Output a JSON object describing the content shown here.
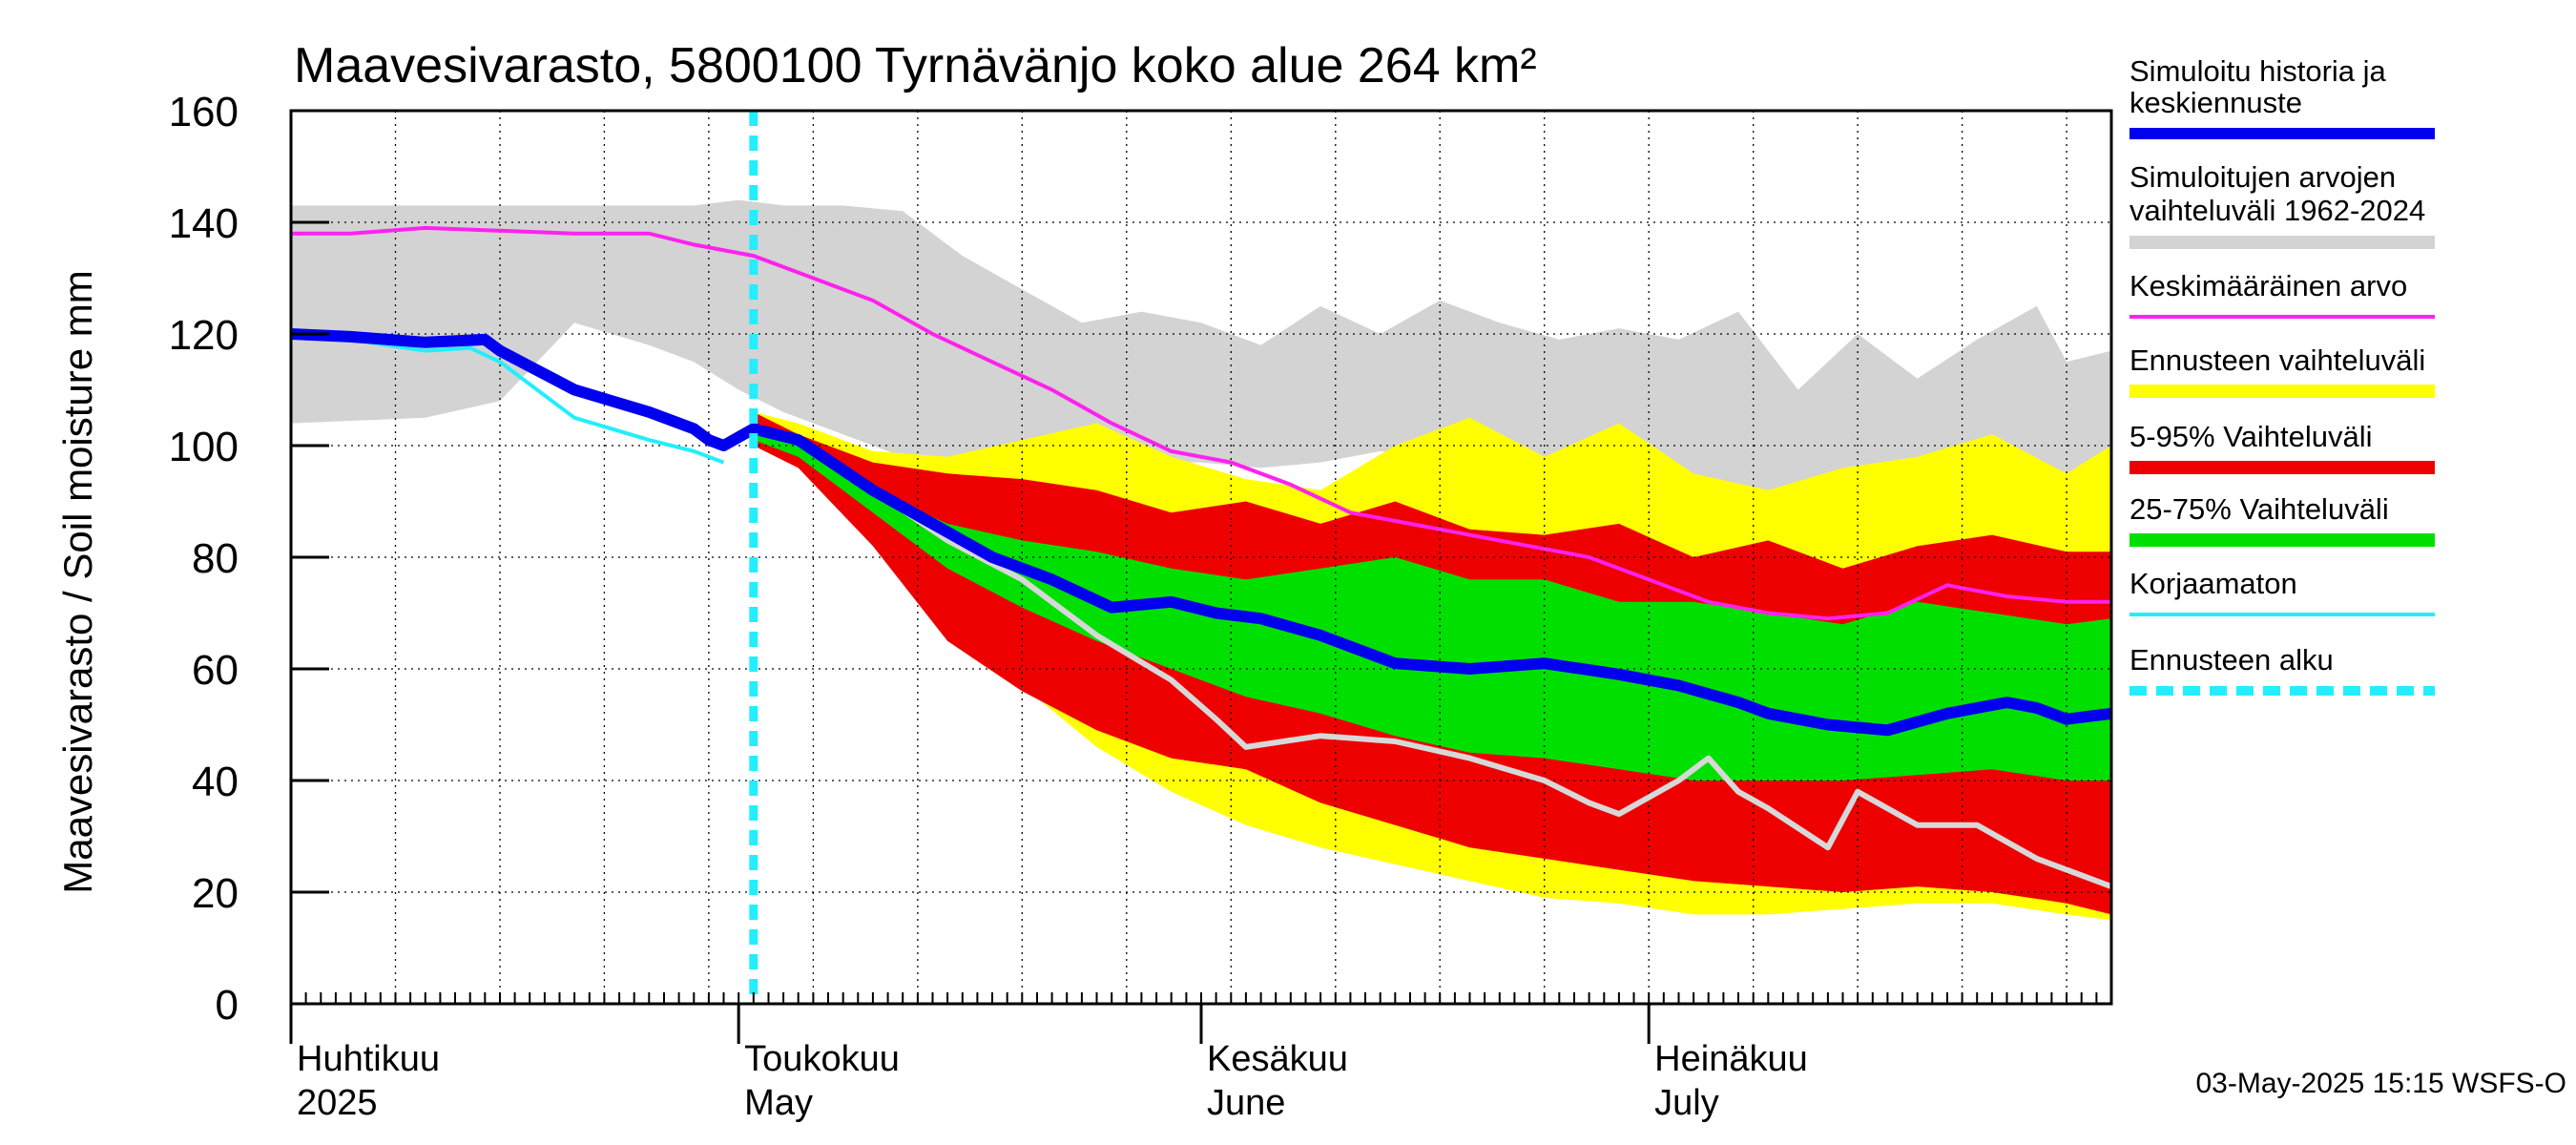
{
  "chart_data": {
    "type": "area",
    "title": "Maavesivarasto, 5800100 Tyrnävänjo koko alue 264 km²",
    "ylabel": "Maavesivarasto / Soil moisture   mm",
    "ylim": [
      0,
      160
    ],
    "yticks": [
      0,
      20,
      40,
      60,
      80,
      100,
      120,
      140,
      160
    ],
    "x_unit": "day of year 2025 (1 = 1 April)",
    "xlim": [
      1,
      123
    ],
    "grid": true,
    "months": [
      {
        "fi": "Huhtikuu",
        "en": "2025",
        "day": 1
      },
      {
        "fi": "Toukokuu",
        "en": "May",
        "day": 31
      },
      {
        "fi": "Kesäkuu",
        "en": "June",
        "day": 62
      },
      {
        "fi": "Heinäkuu",
        "en": "July",
        "day": 92
      }
    ],
    "forecast_start_day": 32,
    "legend": [
      {
        "label": "Simuloitu historia ja keskiennuste",
        "color": "#0000ee"
      },
      {
        "label": "Simuloitujen arvojen vaihteluväli 1962-2024",
        "color": "#d3d3d3"
      },
      {
        "label": "Keskimääräinen arvo",
        "color": "#ff22ee"
      },
      {
        "label": "Ennusteen vaihteluväli",
        "color": "#ffff00"
      },
      {
        "label": "5-95% Vaihteluväli",
        "color": "#ee0000"
      },
      {
        "label": "25-75% Vaihteluväli",
        "color": "#00e000"
      },
      {
        "label": "Korjaamaton",
        "color": "#22eeff"
      },
      {
        "label": "Ennusteen alku",
        "color": "#22eeff"
      }
    ],
    "series": {
      "hist_range": {
        "name": "Simuloitujen arvojen vaihteluväli 1962-2024",
        "x": [
          1,
          10,
          15,
          20,
          25,
          28,
          31,
          34,
          38,
          42,
          46,
          50,
          54,
          58,
          62,
          66,
          70,
          74,
          78,
          82,
          86,
          90,
          94,
          98,
          102,
          106,
          110,
          114,
          118,
          120,
          123
        ],
        "upper": [
          143,
          143,
          143,
          143,
          143,
          143,
          144,
          143,
          143,
          142,
          134,
          128,
          122,
          124,
          122,
          118,
          125,
          120,
          126,
          122,
          119,
          121,
          119,
          124,
          110,
          120,
          112,
          119,
          125,
          115,
          117
        ],
        "lower": [
          104,
          105,
          108,
          122,
          118,
          115,
          110,
          106,
          102,
          98,
          98,
          96,
          98,
          97,
          97,
          96,
          97,
          99,
          98,
          96,
          97,
          99,
          95,
          92,
          90,
          94,
          91,
          95,
          94,
          89,
          98
        ]
      },
      "forecast_range": {
        "name": "Ennusteen vaihteluväli",
        "x": [
          32,
          35,
          40,
          45,
          50,
          55,
          60,
          65,
          70,
          75,
          80,
          85,
          90,
          95,
          100,
          105,
          110,
          115,
          120,
          123
        ],
        "upper": [
          106,
          104,
          99,
          98,
          101,
          104,
          98,
          94,
          92,
          100,
          105,
          98,
          104,
          95,
          92,
          96,
          98,
          102,
          95,
          100
        ],
        "lower": [
          100,
          97,
          85,
          70,
          57,
          46,
          38,
          32,
          28,
          25,
          22,
          19,
          18,
          16,
          16,
          17,
          18,
          18,
          16,
          15
        ]
      },
      "p5_95": {
        "name": "5-95% Vaihteluväli",
        "x": [
          32,
          35,
          40,
          45,
          50,
          55,
          60,
          65,
          70,
          75,
          80,
          85,
          90,
          95,
          100,
          105,
          110,
          115,
          120,
          123
        ],
        "upper": [
          106,
          102,
          97,
          95,
          94,
          92,
          88,
          90,
          86,
          90,
          85,
          84,
          86,
          80,
          83,
          78,
          82,
          84,
          81,
          81
        ],
        "lower": [
          100,
          96,
          82,
          65,
          56,
          49,
          44,
          42,
          36,
          32,
          28,
          26,
          24,
          22,
          21,
          20,
          21,
          20,
          18,
          16
        ]
      },
      "p25_75": {
        "name": "25-75% Vaihteluväli",
        "x": [
          32,
          35,
          40,
          45,
          50,
          55,
          60,
          65,
          70,
          75,
          80,
          85,
          90,
          95,
          100,
          105,
          110,
          115,
          120,
          123
        ],
        "upper": [
          104,
          100,
          92,
          86,
          83,
          81,
          78,
          76,
          78,
          80,
          76,
          76,
          72,
          72,
          70,
          68,
          72,
          70,
          68,
          69
        ],
        "lower": [
          101,
          98,
          88,
          78,
          71,
          65,
          60,
          55,
          52,
          48,
          45,
          44,
          42,
          40,
          40,
          40,
          41,
          42,
          40,
          40
        ]
      },
      "average": {
        "name": "Keskimääräinen arvo",
        "x": [
          1,
          5,
          10,
          15,
          20,
          25,
          28,
          32,
          36,
          40,
          44,
          48,
          52,
          56,
          60,
          64,
          68,
          72,
          76,
          80,
          84,
          88,
          92,
          96,
          100,
          104,
          108,
          112,
          116,
          120,
          123
        ],
        "values": [
          138,
          138,
          139,
          138.5,
          138,
          138,
          136,
          134,
          130,
          126,
          120,
          115,
          110,
          104,
          99,
          97,
          93,
          88,
          86,
          84,
          82,
          80,
          76,
          72,
          70,
          69,
          70,
          75,
          73,
          72,
          72
        ]
      },
      "unadjusted": {
        "name": "Korjaamaton",
        "x": [
          1,
          5,
          10,
          13,
          15,
          20,
          25,
          28,
          30
        ],
        "values": [
          120,
          119,
          117,
          117.5,
          115,
          105,
          101,
          99,
          97
        ]
      },
      "grey_scenario": {
        "name": "",
        "x": [
          32,
          35,
          40,
          45,
          50,
          55,
          60,
          63,
          65,
          70,
          75,
          80,
          85,
          88,
          90,
          94,
          96,
          98,
          100,
          104,
          106,
          108,
          110,
          114,
          116,
          118,
          120,
          123
        ],
        "values": [
          103,
          101,
          92,
          83,
          76,
          66,
          58,
          51,
          46,
          48,
          47,
          44,
          40,
          36,
          34,
          40,
          44,
          38,
          35,
          28,
          38,
          35,
          32,
          32,
          29,
          26,
          24,
          21
        ]
      },
      "median": {
        "name": "Simuloitu historia ja keskiennuste",
        "x": [
          1,
          5,
          10,
          14,
          15,
          20,
          25,
          28,
          29,
          30,
          32,
          35,
          40,
          44,
          48,
          52,
          56,
          60,
          63,
          66,
          70,
          75,
          80,
          85,
          90,
          94,
          98,
          100,
          104,
          108,
          112,
          116,
          118,
          120,
          123
        ],
        "values": [
          120,
          119.5,
          118.5,
          119,
          117,
          110,
          106,
          103,
          101,
          100,
          103,
          101,
          92,
          86,
          80,
          76,
          71,
          72,
          70,
          69,
          66,
          61,
          60,
          61,
          59,
          57,
          54,
          52,
          50,
          49,
          52,
          54,
          53,
          51,
          52
        ]
      }
    }
  },
  "footer": {
    "timestamp": "03-May-2025 15:15 WSFS-O"
  }
}
